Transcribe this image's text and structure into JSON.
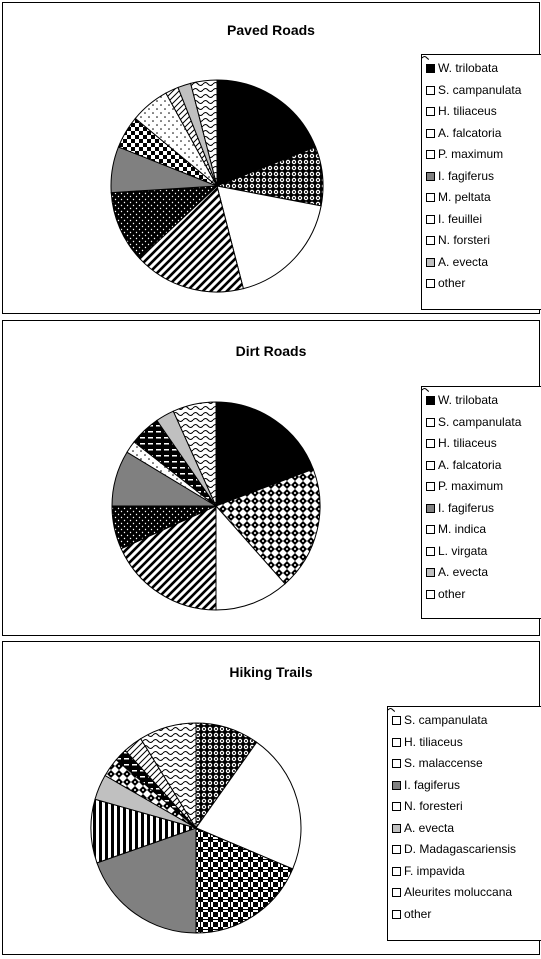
{
  "chart_data": [
    {
      "type": "pie",
      "title": "Paved Roads",
      "series": [
        {
          "name": "W. trilobata",
          "value": 19,
          "pattern": "solid-black"
        },
        {
          "name": "S. campanulata",
          "value": 9,
          "pattern": "dots-dense"
        },
        {
          "name": "H. tiliaceus",
          "value": 18,
          "pattern": "white"
        },
        {
          "name": "A. falcatoria",
          "value": 17,
          "pattern": "diag-stripes"
        },
        {
          "name": "P. maximum",
          "value": 11,
          "pattern": "dots-on-black"
        },
        {
          "name": "I. fagiferus",
          "value": 7,
          "pattern": "gray"
        },
        {
          "name": "M. peltata",
          "value": 5,
          "pattern": "checker"
        },
        {
          "name": "I. feuillei",
          "value": 6,
          "pattern": "sparse-dots"
        },
        {
          "name": "N. forsteri",
          "value": 2,
          "pattern": "diag-thin"
        },
        {
          "name": "A. evecta",
          "value": 2,
          "pattern": "light-gray"
        },
        {
          "name": "other",
          "value": 4,
          "pattern": "wavy"
        }
      ]
    },
    {
      "type": "pie",
      "title": "Dirt Roads",
      "series": [
        {
          "name": "W. trilobata",
          "value": 20,
          "pattern": "solid-black"
        },
        {
          "name": "S. campanulata",
          "value": 20,
          "pattern": "diamond-checker"
        },
        {
          "name": "H. tiliaceus",
          "value": 12,
          "pattern": "white"
        },
        {
          "name": "A. falcatoria",
          "value": 19,
          "pattern": "diag-stripes"
        },
        {
          "name": "P. maximum",
          "value": 7,
          "pattern": "dots-on-black"
        },
        {
          "name": "I. fagiferus",
          "value": 9,
          "pattern": "gray"
        },
        {
          "name": "M. indica",
          "value": 2,
          "pattern": "sparse-dots"
        },
        {
          "name": "L. virgata",
          "value": 5,
          "pattern": "dash-black"
        },
        {
          "name": "A. evecta",
          "value": 3,
          "pattern": "light-gray"
        },
        {
          "name": "other",
          "value": 7,
          "pattern": "wavy"
        }
      ]
    },
    {
      "type": "pie",
      "title": "Hiking Trails",
      "series": [
        {
          "name": "S. campanulata",
          "value": 10,
          "pattern": "dots-dense"
        },
        {
          "name": "H. tiliaceus",
          "value": 22,
          "pattern": "white"
        },
        {
          "name": "S. malaccense",
          "value": 19,
          "pattern": "plaid"
        },
        {
          "name": "I. fagiferus",
          "value": 20,
          "pattern": "gray"
        },
        {
          "name": "N. foresteri",
          "value": 10,
          "pattern": "vert-stripes"
        },
        {
          "name": "A. evecta",
          "value": 4,
          "pattern": "light-gray"
        },
        {
          "name": "D. Madagascariensis",
          "value": 3,
          "pattern": "diamond-checker"
        },
        {
          "name": "F. impavida",
          "value": 2,
          "pattern": "dash-black"
        },
        {
          "name": "Aleurites moluccana",
          "value": 3,
          "pattern": "diag-thin"
        },
        {
          "name": "other",
          "value": 9,
          "pattern": "wavy"
        }
      ]
    }
  ]
}
